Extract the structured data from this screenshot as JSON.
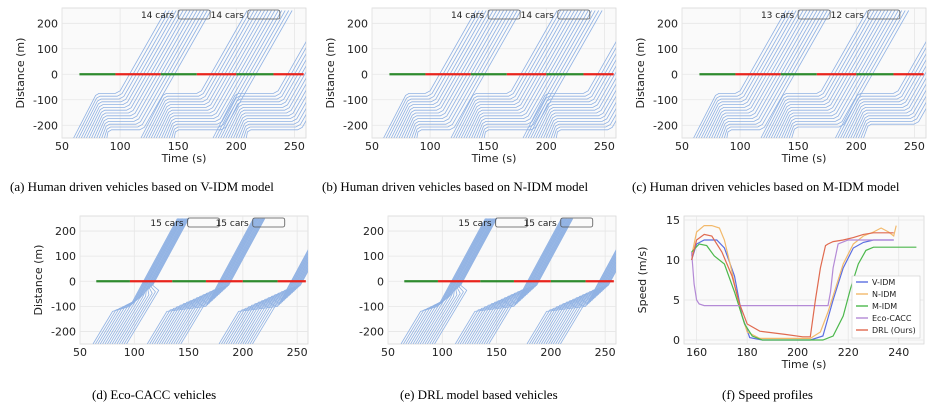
{
  "figure": {
    "captions": [
      "(a) Human driven vehicles based on V-IDM model",
      "(b) Human driven vehicles based on N-IDM model",
      "(c) Human driven vehicles based on M-IDM model",
      "(d) Eco-CACC vehicles",
      "(e) DRL model based vehicles",
      "(f) Speed profiles"
    ]
  },
  "chart_data": [
    {
      "type": "line",
      "id": "a",
      "xlabel": "Time (s)",
      "ylabel": "Distance (m)",
      "xlim": [
        50,
        260
      ],
      "ylim": [
        -250,
        260
      ],
      "xticks": [
        50,
        100,
        150,
        200,
        250
      ],
      "yticks": [
        -200,
        -100,
        0,
        100,
        200
      ],
      "grid": true,
      "count_labels": [
        "14 cars",
        "14 cars"
      ],
      "signal_phases": [
        [
          65,
          96,
          "green"
        ],
        [
          96,
          135,
          "red"
        ],
        [
          135,
          166,
          "green"
        ],
        [
          166,
          200,
          "red"
        ],
        [
          200,
          232,
          "green"
        ],
        [
          232,
          258,
          "red"
        ]
      ],
      "signal_colors": {
        "green": "#2e8b2e",
        "red": "#e8241c"
      },
      "line_color": "#8fb1e3",
      "platoons": [
        {
          "start": 60,
          "n": 14,
          "queued": true,
          "release": 96
        },
        {
          "start": 118,
          "n": 14,
          "queued": true,
          "release": 166
        },
        {
          "start": 180,
          "n": 14,
          "queued": true,
          "release": 232
        }
      ],
      "speed": 8
    },
    {
      "type": "line",
      "id": "b",
      "xlabel": "Time (s)",
      "ylabel": "Distance (m)",
      "xlim": [
        50,
        260
      ],
      "ylim": [
        -250,
        260
      ],
      "xticks": [
        50,
        100,
        150,
        200,
        250
      ],
      "yticks": [
        -200,
        -100,
        0,
        100,
        200
      ],
      "grid": true,
      "count_labels": [
        "14 cars",
        "14 cars"
      ],
      "signal_phases": [
        [
          65,
          96,
          "green"
        ],
        [
          96,
          135,
          "red"
        ],
        [
          135,
          166,
          "green"
        ],
        [
          166,
          200,
          "red"
        ],
        [
          200,
          232,
          "green"
        ],
        [
          232,
          258,
          "red"
        ]
      ],
      "signal_colors": {
        "green": "#2e8b2e",
        "red": "#e8241c"
      },
      "line_color": "#8fb1e3",
      "platoons": [
        {
          "start": 60,
          "n": 14,
          "queued": true,
          "release": 96
        },
        {
          "start": 118,
          "n": 14,
          "queued": true,
          "release": 166
        },
        {
          "start": 180,
          "n": 14,
          "queued": true,
          "release": 232
        }
      ],
      "speed": 8
    },
    {
      "type": "line",
      "id": "c",
      "xlabel": "Time (s)",
      "ylabel": "Distance (m)",
      "xlim": [
        50,
        260
      ],
      "ylim": [
        -250,
        260
      ],
      "xticks": [
        50,
        100,
        150,
        200,
        250
      ],
      "yticks": [
        -200,
        -100,
        0,
        100,
        200
      ],
      "grid": true,
      "count_labels": [
        "13 cars",
        "12 cars"
      ],
      "signal_phases": [
        [
          65,
          96,
          "green"
        ],
        [
          96,
          135,
          "red"
        ],
        [
          135,
          166,
          "green"
        ],
        [
          166,
          200,
          "red"
        ],
        [
          200,
          232,
          "green"
        ],
        [
          232,
          258,
          "red"
        ]
      ],
      "signal_colors": {
        "green": "#2e8b2e",
        "red": "#e8241c"
      },
      "line_color": "#8fb1e3",
      "platoons": [
        {
          "start": 60,
          "n": 14,
          "queued": true,
          "release": 96
        },
        {
          "start": 118,
          "n": 13,
          "queued": true,
          "release": 166
        },
        {
          "start": 182,
          "n": 12,
          "queued": true,
          "release": 232
        }
      ],
      "speed": 8
    },
    {
      "type": "line",
      "id": "d",
      "xlabel": "",
      "ylabel": "Distance (m)",
      "xlim": [
        50,
        260
      ],
      "ylim": [
        -250,
        260
      ],
      "xticks": [
        50,
        100,
        150,
        200,
        250
      ],
      "yticks": [
        -200,
        -100,
        0,
        100,
        200
      ],
      "grid": true,
      "count_labels": [
        "15 cars",
        "15 cars"
      ],
      "signal_phases": [
        [
          65,
          96,
          "green"
        ],
        [
          96,
          135,
          "red"
        ],
        [
          135,
          166,
          "green"
        ],
        [
          166,
          200,
          "red"
        ],
        [
          200,
          232,
          "green"
        ],
        [
          232,
          258,
          "red"
        ]
      ],
      "signal_colors": {
        "green": "#2e8b2e",
        "red": "#e8241c"
      },
      "line_color": "#8fb1e3",
      "platoons": [
        {
          "start": 62,
          "n": 15,
          "queued": false,
          "release": 96
        },
        {
          "start": 112,
          "n": 15,
          "queued": false,
          "release": 166
        },
        {
          "start": 178,
          "n": 15,
          "queued": false,
          "release": 232
        }
      ],
      "speed": 8
    },
    {
      "type": "line",
      "id": "e",
      "xlabel": "",
      "ylabel": "",
      "xlim": [
        50,
        260
      ],
      "ylim": [
        -250,
        260
      ],
      "xticks": [
        50,
        100,
        150,
        200,
        250
      ],
      "yticks": [
        -200,
        -100,
        0,
        100,
        200
      ],
      "grid": true,
      "count_labels": [
        "15 cars",
        "15 cars"
      ],
      "signal_phases": [
        [
          65,
          96,
          "green"
        ],
        [
          96,
          135,
          "red"
        ],
        [
          135,
          166,
          "green"
        ],
        [
          166,
          200,
          "red"
        ],
        [
          200,
          232,
          "green"
        ],
        [
          232,
          258,
          "red"
        ]
      ],
      "signal_colors": {
        "green": "#2e8b2e",
        "red": "#e8241c"
      },
      "line_color": "#8fb1e3",
      "platoons": [
        {
          "start": 62,
          "n": 15,
          "queued": false,
          "release": 96
        },
        {
          "start": 112,
          "n": 15,
          "queued": false,
          "release": 166
        },
        {
          "start": 178,
          "n": 15,
          "queued": false,
          "release": 232
        }
      ],
      "speed": 8
    },
    {
      "type": "line",
      "id": "f",
      "xlabel": "Time (s)",
      "ylabel": "Speed (m/s)",
      "xlim": [
        155,
        250
      ],
      "ylim": [
        -0.5,
        15.5
      ],
      "xticks": [
        160,
        180,
        200,
        220,
        240
      ],
      "yticks": [
        0,
        5,
        10,
        15
      ],
      "grid": true,
      "legend": "bottom-right",
      "series": [
        {
          "name": "V-IDM",
          "color": "#5b6ee1",
          "x": [
            158,
            160,
            163,
            168,
            171,
            175,
            178,
            181,
            186,
            205,
            210,
            214,
            218,
            222,
            226,
            230,
            234,
            238
          ],
          "y": [
            10,
            12,
            12.5,
            12.5,
            11.5,
            8,
            3,
            0.3,
            0,
            0,
            0.5,
            5,
            9,
            11.5,
            12.2,
            12.5,
            12.5,
            12.5
          ]
        },
        {
          "name": "N-IDM",
          "color": "#f2b96b",
          "x": [
            158,
            160,
            163,
            166,
            169,
            171,
            174,
            177,
            180,
            185,
            205,
            209,
            212,
            215,
            218,
            222,
            226,
            230,
            233,
            236,
            238,
            239
          ],
          "y": [
            10.5,
            13.5,
            14.3,
            14.3,
            14,
            12.5,
            8.5,
            4,
            1,
            0.2,
            0.2,
            1,
            3.5,
            6.5,
            9.5,
            12,
            13,
            13.5,
            14,
            13.5,
            13,
            14.3
          ]
        },
        {
          "name": "M-IDM",
          "color": "#4cb84c",
          "x": [
            158,
            161,
            164,
            167,
            171,
            175,
            179,
            182,
            186,
            210,
            214,
            218,
            221,
            224,
            227,
            230,
            240,
            247
          ],
          "y": [
            11,
            12,
            11.8,
            10.5,
            9.5,
            6,
            2,
            0.5,
            0,
            0,
            0.5,
            3,
            6.5,
            9.5,
            11.2,
            11.6,
            11.6,
            11.6
          ]
        },
        {
          "name": "Eco-CACC",
          "color": "#b48ad6",
          "x": [
            158,
            159,
            160,
            161,
            163,
            180,
            200,
            212,
            213,
            214,
            216,
            220,
            225,
            230,
            238
          ],
          "y": [
            11,
            7,
            5,
            4.5,
            4.3,
            4.3,
            4.3,
            4.3,
            6,
            9,
            12,
            12.5,
            12.5,
            12.5,
            12.5
          ]
        },
        {
          "name": "DRL (Ours)",
          "color": "#e06a4f",
          "x": [
            158,
            160,
            163,
            166,
            170,
            174,
            177,
            180,
            185,
            195,
            202,
            205,
            207,
            209,
            211,
            212,
            214,
            218,
            222,
            226,
            230,
            234,
            238
          ],
          "y": [
            10,
            12.5,
            13.2,
            13,
            11,
            8,
            4.5,
            2,
            1.1,
            0.7,
            0.4,
            0.4,
            5,
            9,
            11.8,
            12,
            12.3,
            12.5,
            12.8,
            13.2,
            13.4,
            13.4,
            13.4
          ]
        }
      ]
    }
  ]
}
